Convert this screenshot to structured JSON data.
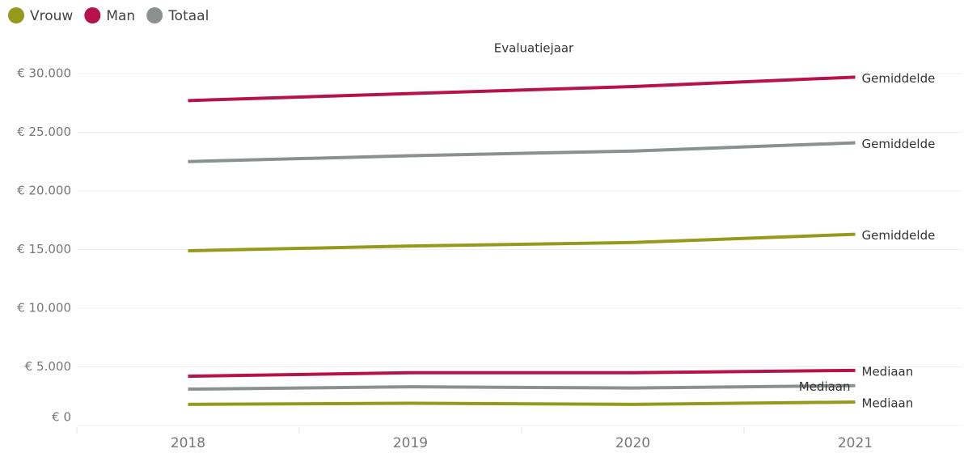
{
  "chart_data": {
    "type": "line",
    "x_title": "Evaluatiejaar",
    "categories": [
      "2018",
      "2019",
      "2020",
      "2021"
    ],
    "ylim": [
      0,
      30000
    ],
    "yticks": [
      {
        "value": 0,
        "label": "€ 0"
      },
      {
        "value": 5000,
        "label": "€ 5.000"
      },
      {
        "value": 10000,
        "label": "€ 10.000"
      },
      {
        "value": 15000,
        "label": "€ 15.000"
      },
      {
        "value": 20000,
        "label": "€ 20.000"
      },
      {
        "value": 25000,
        "label": "€ 25.000"
      },
      {
        "value": 30000,
        "label": "€ 30.000"
      }
    ],
    "grid": true,
    "series": [
      {
        "name": "Vrouw",
        "color": "#959a1d",
        "lines": [
          {
            "label": "Gemiddelde",
            "values": [
              14900,
              15300,
              15600,
              16300
            ]
          },
          {
            "label": "Mediaan",
            "values": [
              1800,
              1900,
              1800,
              2000
            ]
          }
        ]
      },
      {
        "name": "Man",
        "color": "#b8124b",
        "lines": [
          {
            "label": "Gemiddelde",
            "values": [
              27700,
              28300,
              28900,
              29700
            ]
          },
          {
            "label": "Mediaan",
            "values": [
              4200,
              4500,
              4500,
              4700
            ]
          }
        ]
      },
      {
        "name": "Totaal",
        "color": "#8b9190",
        "lines": [
          {
            "label": "Gemiddelde",
            "values": [
              22500,
              23000,
              23400,
              24100
            ]
          },
          {
            "label": "Mediaan",
            "values": [
              3100,
              3300,
              3200,
              3400
            ]
          }
        ]
      }
    ]
  }
}
